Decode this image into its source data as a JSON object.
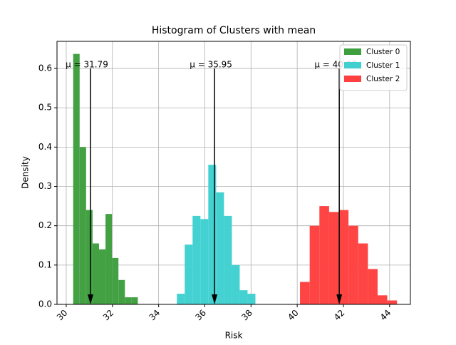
{
  "chart_data": {
    "type": "histogram",
    "title": "Histogram of Clusters with mean",
    "x_label": "Risk",
    "y_label": "Density",
    "series": [
      {
        "name": "Cluster 0",
        "color": "#3f9f3f",
        "bins": [
          30.3,
          30.58,
          30.86,
          31.14,
          31.42,
          31.7,
          31.98,
          32.26,
          32.54,
          32.82,
          33.1
        ],
        "values": [
          0.637,
          0.4,
          0.24,
          0.155,
          0.14,
          0.23,
          0.118,
          0.062,
          0.018,
          0.018
        ]
      },
      {
        "name": "Cluster 1",
        "color": "#40d0d0",
        "bins": [
          34.79,
          35.13,
          35.47,
          35.81,
          36.15,
          36.49,
          36.83,
          37.17,
          37.51,
          37.85,
          38.19
        ],
        "values": [
          0.027,
          0.152,
          0.225,
          0.217,
          0.355,
          0.285,
          0.225,
          0.1,
          0.036,
          0.027
        ]
      },
      {
        "name": "Cluster 2",
        "color": "#ff4040",
        "bins": [
          40.12,
          40.54,
          40.96,
          41.38,
          41.8,
          42.22,
          42.64,
          43.06,
          43.48,
          43.9,
          44.32
        ],
        "values": [
          0.057,
          0.2,
          0.25,
          0.235,
          0.24,
          0.2,
          0.155,
          0.09,
          0.023,
          0.01
        ]
      }
    ],
    "annotations": [
      {
        "text": "μ = 31.79",
        "x": 31.05,
        "y": 0.6
      },
      {
        "text": "μ = 35.95",
        "x": 36.42,
        "y": 0.6
      },
      {
        "text": "μ = 40.97",
        "x": 41.82,
        "y": 0.6
      }
    ],
    "xlim": [
      29.6,
      44.9
    ],
    "xticks": [
      30,
      32,
      34,
      36,
      38,
      40,
      42,
      44
    ],
    "ylim": [
      0,
      0.669
    ],
    "yticks": [
      {
        "value": 0,
        "label": "0.0"
      },
      0.1,
      0.2,
      0.3,
      0.4,
      0.5,
      0.6
    ],
    "grid": true,
    "legend": "upper-right"
  }
}
